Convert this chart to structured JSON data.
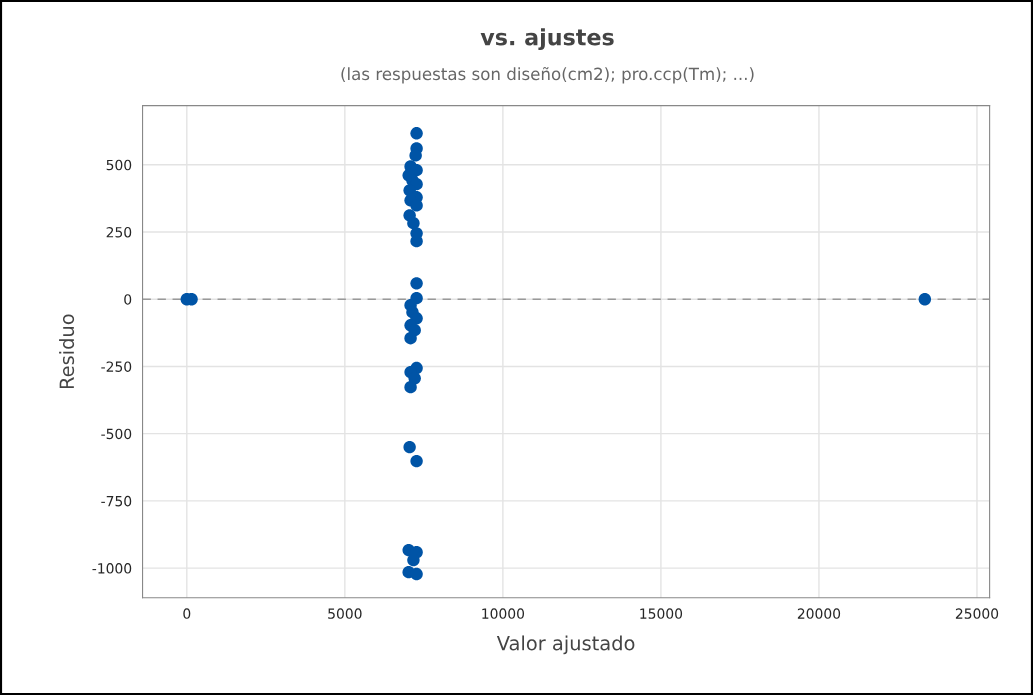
{
  "chart_data": {
    "type": "scatter",
    "title": "vs. ajustes",
    "subtitle": "(las respuestas son diseño(cm2); pro.ccp(Tm); ...)",
    "xlabel": "Valor ajustado",
    "ylabel": "Residuo",
    "series": [
      {
        "color": "#0054a6",
        "x": [
          0,
          150,
          23350,
          7270,
          7270,
          7240,
          7080,
          7270,
          7020,
          7140,
          7270,
          7050,
          7270,
          7080,
          7270,
          7050,
          7170,
          7270,
          7270,
          7270,
          7270,
          7080,
          7140,
          7270,
          7080,
          7210,
          7080,
          7270,
          7080,
          7210,
          7080,
          7050,
          7270,
          7020,
          7270,
          7170,
          7020,
          7270
        ],
        "values": [
          0,
          0,
          0,
          617,
          561,
          535,
          494,
          480,
          461,
          442,
          428,
          405,
          379,
          368,
          349,
          312,
          283,
          245,
          216,
          59,
          4,
          -22,
          -48,
          -71,
          -97,
          -115,
          -145,
          -256,
          -271,
          -294,
          -327,
          -550,
          -602,
          -933,
          -941,
          -970,
          -1015,
          -1022
        ]
      }
    ],
    "xlim": [
      -1400,
      25400
    ],
    "ylim": [
      -1110,
      720
    ],
    "xticks": [
      0,
      5000,
      10000,
      15000,
      20000,
      25000
    ],
    "yticks": [
      -1000,
      -750,
      -500,
      -250,
      0,
      250,
      500
    ],
    "ref_lines": [
      {
        "axis": "y",
        "value": 0,
        "color": "#999999",
        "line_style": "dashed"
      }
    ],
    "grid": true,
    "marker": "circle"
  }
}
